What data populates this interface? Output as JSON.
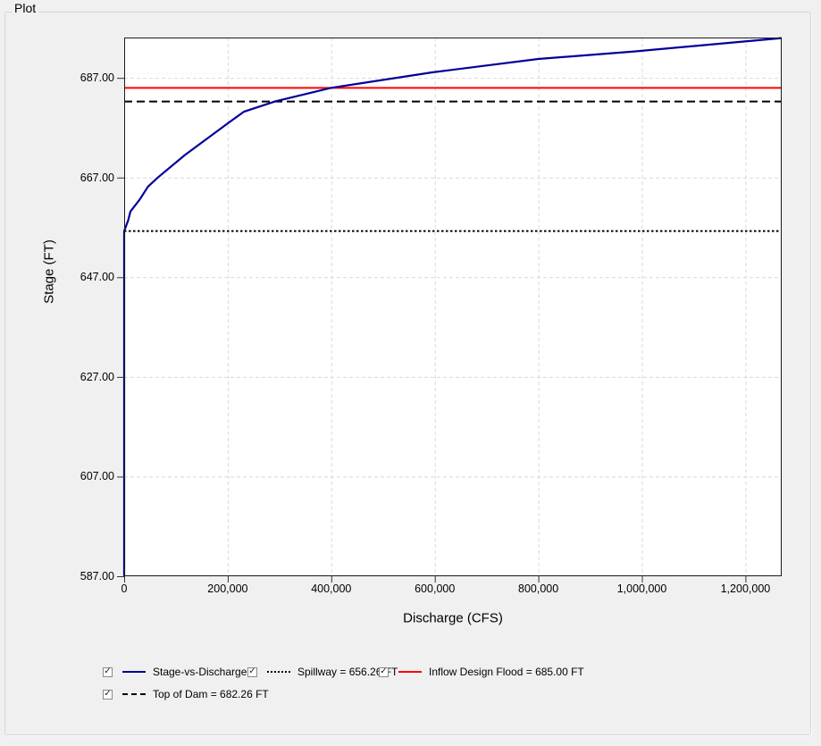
{
  "panel": {
    "title": "Plot"
  },
  "chart_data": {
    "type": "line",
    "title": "",
    "xlabel": "Discharge (CFS)",
    "ylabel": "Stage (FT)",
    "xlim": [
      0,
      1270000
    ],
    "ylim": [
      587,
      695.1
    ],
    "grid": true,
    "grid_color": "#d9d9d9",
    "plot_background": "#ffffff",
    "plot_border_color": "#1a1a1a",
    "x_ticks": {
      "values": [
        0,
        200000,
        400000,
        600000,
        800000,
        1000000,
        1200000
      ],
      "labels": [
        "0",
        "200,000",
        "400,000",
        "600,000",
        "800,000",
        "1,000,000",
        "1,200,000"
      ]
    },
    "y_ticks": {
      "values": [
        687,
        667,
        647,
        627,
        607,
        587
      ],
      "labels": [
        "687.00",
        "667.00",
        "647.00",
        "627.00",
        "607.00",
        "587.00"
      ]
    },
    "faint_dotted_gridline_stage": 688,
    "series": [
      {
        "name": "Stage-vs-Discharge",
        "color": "#000099",
        "style": "solid",
        "points": [
          [
            0,
            587.0
          ],
          [
            0,
            656.26
          ],
          [
            8000,
            658.5
          ],
          [
            12000,
            660.2
          ],
          [
            30000,
            662.6
          ],
          [
            46000,
            665.2
          ],
          [
            65000,
            667.0
          ],
          [
            117000,
            671.5
          ],
          [
            195000,
            677.5
          ],
          [
            231000,
            680.2
          ],
          [
            292000,
            682.3
          ],
          [
            400000,
            685.0
          ],
          [
            595000,
            688.1
          ],
          [
            800000,
            690.8
          ],
          [
            985000,
            692.3
          ],
          [
            1270000,
            695.0
          ]
        ]
      }
    ],
    "reference_lines": [
      {
        "name": "Spillway = 656.26 FT",
        "value": 656.26,
        "color": "#000000",
        "style": "dotted"
      },
      {
        "name": "Top of Dam = 682.26 FT",
        "value": 682.26,
        "color": "#000000",
        "style": "dashed"
      },
      {
        "name": "Inflow Design Flood = 685.00 FT",
        "value": 685.0,
        "color": "#ff0000",
        "style": "solid"
      }
    ]
  },
  "legend": {
    "items": [
      {
        "label": "Stage-vs-Discharge",
        "checked": true,
        "color": "#000099",
        "style": "solid"
      },
      {
        "label": "Spillway = 656.26 FT",
        "checked": true,
        "color": "#000000",
        "style": "dotted"
      },
      {
        "label": "Inflow Design Flood = 685.00 FT",
        "checked": true,
        "color": "#ff0000",
        "style": "solid"
      },
      {
        "label": "Top of Dam = 682.26 FT",
        "checked": true,
        "color": "#000000",
        "style": "dashed"
      }
    ]
  }
}
